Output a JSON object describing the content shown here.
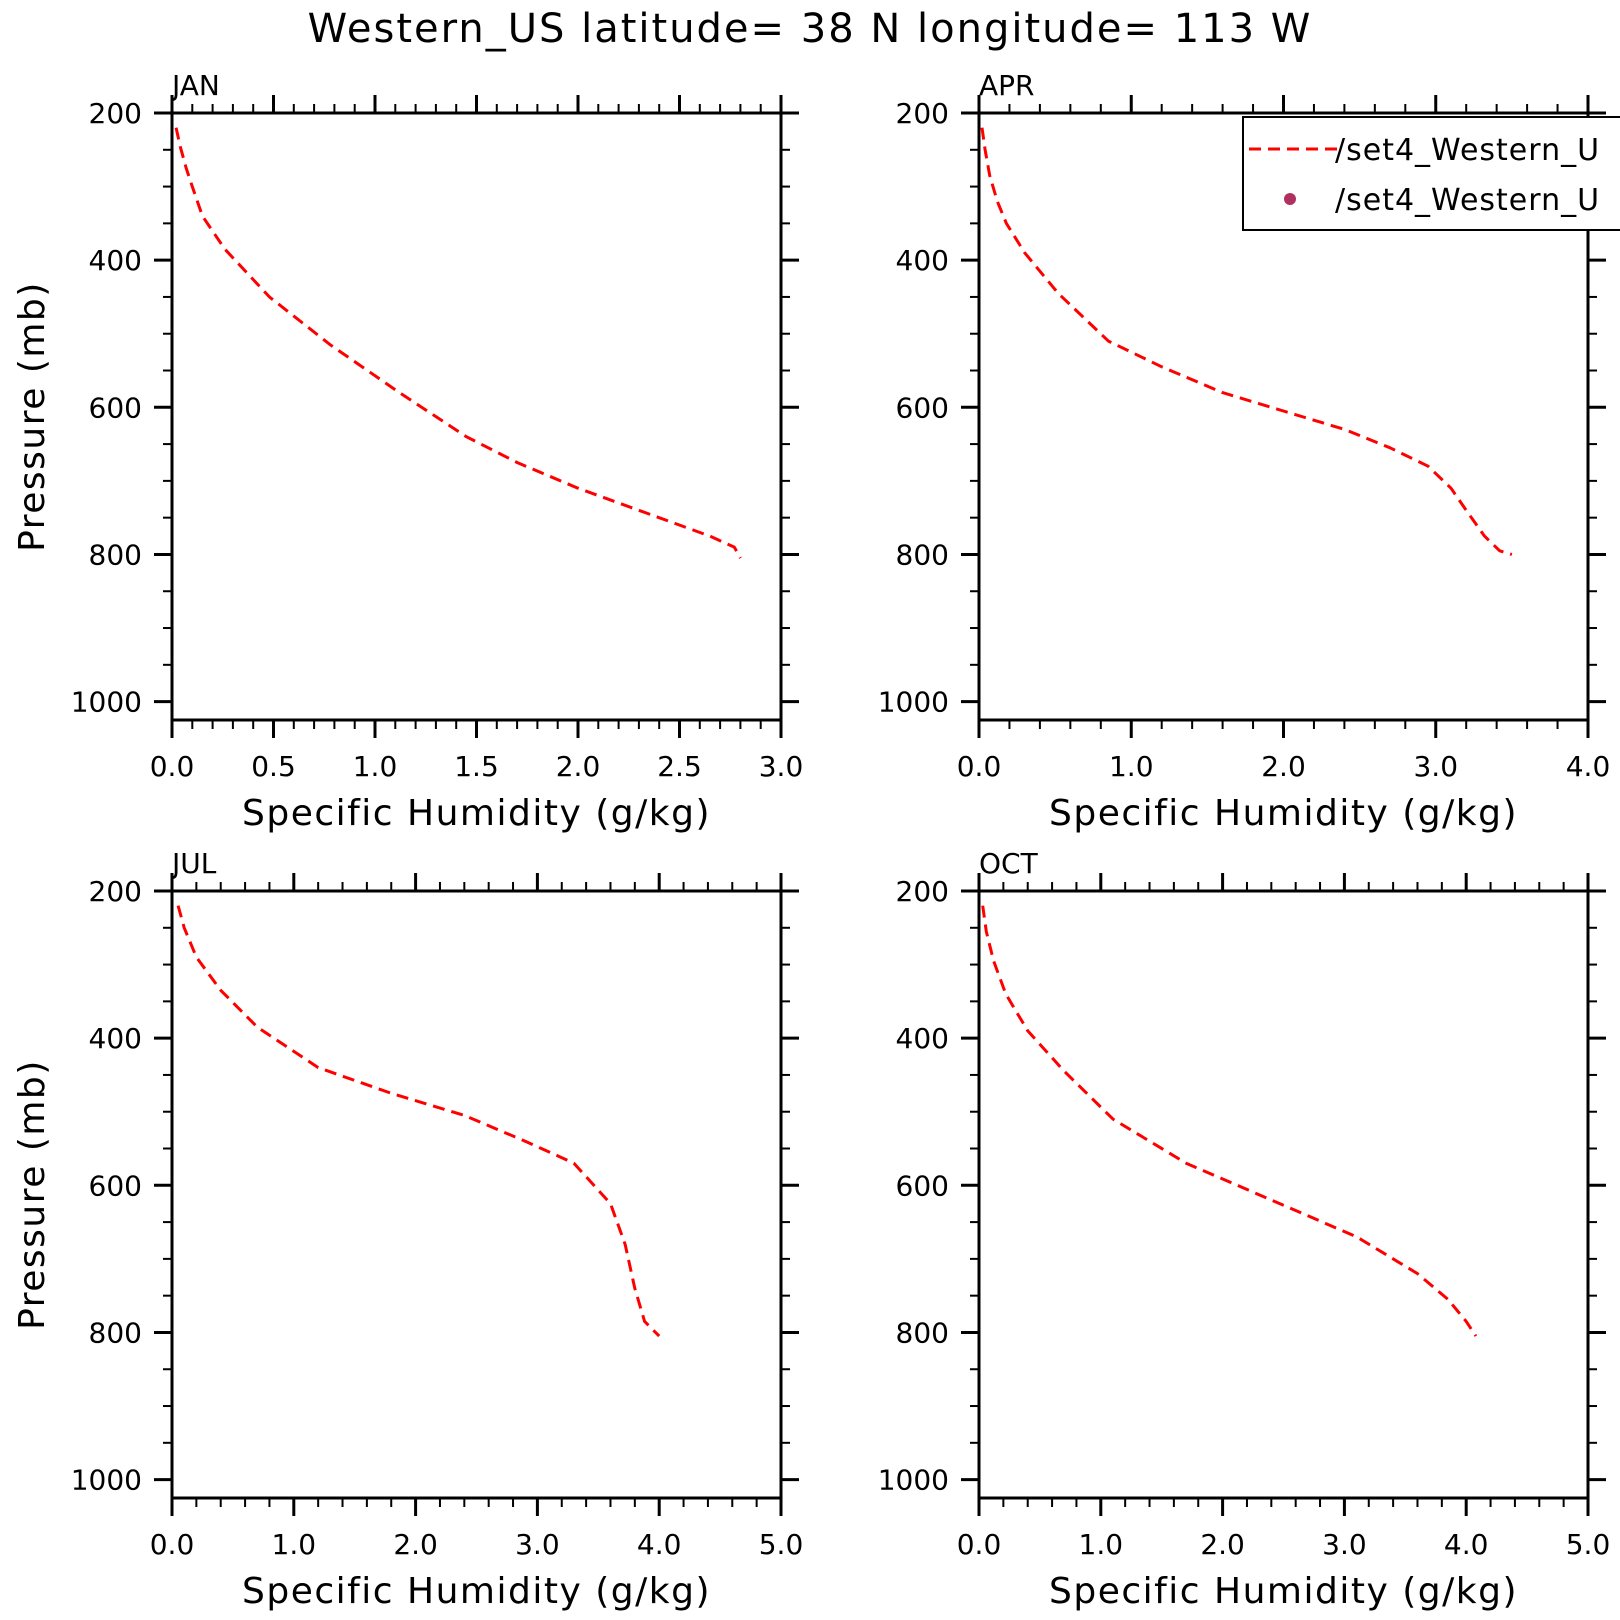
{
  "figure": {
    "title": "Western_US  latitude= 38 N longitude= 113 W"
  },
  "legend": {
    "entries": [
      {
        "label": "/set4_Western_U",
        "style": "dashed-line",
        "color": "#ff0000"
      },
      {
        "label": "/set4_Western_U",
        "style": "dot",
        "color": "#b03060"
      }
    ]
  },
  "chart_data": [
    {
      "type": "line",
      "title": "JAN",
      "xlabel": "Specific Humidity (g/kg)",
      "ylabel": "Pressure (mb)",
      "xlim": [
        0,
        3
      ],
      "ylim": [
        200,
        1025
      ],
      "y_inverted": true,
      "xticks": [
        0,
        0.5,
        1,
        1.5,
        2,
        2.5,
        3
      ],
      "xtick_labels": [
        "0.0",
        "0.5",
        "1.0",
        "1.5",
        "2.0",
        "2.5",
        "3.0"
      ],
      "yticks": [
        200,
        400,
        600,
        800,
        1000
      ],
      "ytick_labels": [
        "200",
        "400",
        "600",
        "800",
        "1000"
      ],
      "legend": false,
      "series": [
        {
          "color": "#ff0000",
          "dash": "dashed",
          "x": [
            0.02,
            0.04,
            0.07,
            0.1,
            0.15,
            0.26,
            0.48,
            0.78,
            1.12,
            1.45,
            1.7,
            2.0,
            2.4,
            2.65,
            2.77,
            2.8
          ],
          "y": [
            220,
            245,
            275,
            300,
            340,
            385,
            450,
            515,
            580,
            640,
            675,
            710,
            750,
            775,
            790,
            805
          ]
        }
      ]
    },
    {
      "type": "line",
      "title": "APR",
      "xlabel": "Specific Humidity (g/kg)",
      "ylabel": "",
      "xlim": [
        0,
        4
      ],
      "ylim": [
        200,
        1025
      ],
      "y_inverted": true,
      "xticks": [
        0,
        1,
        2,
        3,
        4
      ],
      "xtick_labels": [
        "0.0",
        "1.0",
        "2.0",
        "3.0",
        "4.0"
      ],
      "yticks": [
        200,
        400,
        600,
        800,
        1000
      ],
      "ytick_labels": [
        "200",
        "400",
        "600",
        "800",
        "1000"
      ],
      "legend": true,
      "series": [
        {
          "color": "#ff0000",
          "dash": "dashed",
          "x": [
            0.02,
            0.04,
            0.07,
            0.12,
            0.18,
            0.3,
            0.52,
            0.85,
            1.2,
            1.6,
            2.0,
            2.4,
            2.7,
            2.95,
            3.1,
            3.2,
            3.32,
            3.42,
            3.5
          ],
          "y": [
            220,
            250,
            285,
            320,
            350,
            390,
            445,
            510,
            545,
            580,
            605,
            630,
            655,
            680,
            710,
            740,
            775,
            795,
            800
          ]
        }
      ]
    },
    {
      "type": "line",
      "title": "JUL",
      "xlabel": "Specific Humidity (g/kg)",
      "ylabel": "Pressure (mb)",
      "xlim": [
        0,
        5
      ],
      "ylim": [
        200,
        1025
      ],
      "y_inverted": true,
      "xticks": [
        0,
        1,
        2,
        3,
        4,
        5
      ],
      "xtick_labels": [
        "0.0",
        "1.0",
        "2.0",
        "3.0",
        "4.0",
        "5.0"
      ],
      "yticks": [
        200,
        400,
        600,
        800,
        1000
      ],
      "ytick_labels": [
        "200",
        "400",
        "600",
        "800",
        "1000"
      ],
      "legend": false,
      "series": [
        {
          "color": "#ff0000",
          "dash": "dashed",
          "x": [
            0.05,
            0.1,
            0.2,
            0.4,
            0.7,
            1.2,
            1.8,
            2.4,
            2.9,
            3.3,
            3.6,
            3.72,
            3.8,
            3.88,
            4.0
          ],
          "y": [
            220,
            250,
            290,
            335,
            385,
            440,
            475,
            505,
            540,
            570,
            625,
            680,
            740,
            785,
            805
          ]
        }
      ]
    },
    {
      "type": "line",
      "title": "OCT",
      "xlabel": "Specific Humidity (g/kg)",
      "ylabel": "",
      "xlim": [
        0,
        5
      ],
      "ylim": [
        200,
        1025
      ],
      "y_inverted": true,
      "xticks": [
        0,
        1,
        2,
        3,
        4,
        5
      ],
      "xtick_labels": [
        "0.0",
        "1.0",
        "2.0",
        "3.0",
        "4.0",
        "5.0"
      ],
      "yticks": [
        200,
        400,
        600,
        800,
        1000
      ],
      "ytick_labels": [
        "200",
        "400",
        "600",
        "800",
        "1000"
      ],
      "legend": false,
      "series": [
        {
          "color": "#ff0000",
          "dash": "dashed",
          "x": [
            0.03,
            0.06,
            0.12,
            0.22,
            0.4,
            0.7,
            1.1,
            1.7,
            2.4,
            3.1,
            3.6,
            3.85,
            4.0,
            4.08
          ],
          "y": [
            220,
            255,
            295,
            340,
            390,
            445,
            510,
            570,
            620,
            670,
            720,
            755,
            785,
            805
          ]
        }
      ]
    }
  ]
}
